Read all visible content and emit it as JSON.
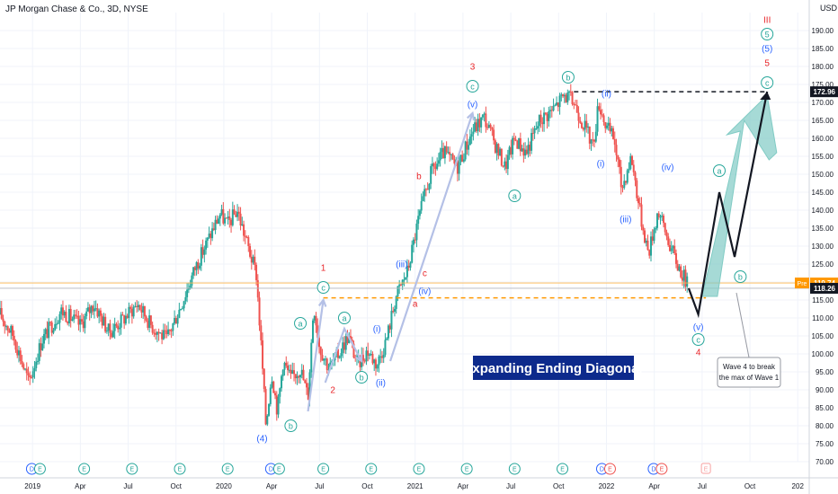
{
  "header": {
    "title": "JP Morgan Chase & Co., 3D, NYSE",
    "currency": "USD"
  },
  "annotation_box": {
    "title": "Expanding Ending Diagonal"
  },
  "callout": {
    "line1": "Wave 4 to break",
    "line2": "the max of Wave 1"
  },
  "price_tags": [
    {
      "label": "172.96",
      "value": 172.96,
      "bg": "#131722"
    },
    {
      "prefix": "Pre",
      "label": "119.74",
      "value": 119.74,
      "bg": "#ff9800"
    },
    {
      "label": "118.26",
      "value": 118.26,
      "bg": "#131722"
    }
  ],
  "colors": {
    "up": "#26a69a",
    "down": "#ef5350",
    "wave_red": "#e8262a",
    "wave_blue": "#2962ff",
    "wave_green": "#26a69a",
    "path": "#131722",
    "projection": "#80cbc4",
    "trend": "#b4c0e6",
    "dash_orange": "#ff9800",
    "box_bg": "#0d2a8c",
    "grid": "#f0f3fa"
  },
  "chart_data": {
    "type": "candlestick",
    "title": "JP Morgan Chase & Co., 3D, NYSE",
    "ylim": [
      70,
      195
    ],
    "y_ticks": [
      70,
      75,
      80,
      85,
      90,
      95,
      100,
      105,
      110,
      115,
      120,
      125,
      130,
      135,
      140,
      145,
      150,
      155,
      160,
      165,
      170,
      175,
      180,
      185,
      190
    ],
    "x_ticks": [
      {
        "label": "2019",
        "t": 2019.0
      },
      {
        "label": "Apr",
        "t": 2019.25
      },
      {
        "label": "Jul",
        "t": 2019.5
      },
      {
        "label": "Oct",
        "t": 2019.75
      },
      {
        "label": "2020",
        "t": 2020.0
      },
      {
        "label": "Apr",
        "t": 2020.25
      },
      {
        "label": "Jul",
        "t": 2020.5
      },
      {
        "label": "Oct",
        "t": 2020.75
      },
      {
        "label": "2021",
        "t": 2021.0
      },
      {
        "label": "Apr",
        "t": 2021.25
      },
      {
        "label": "Jul",
        "t": 2021.5
      },
      {
        "label": "Oct",
        "t": 2021.75
      },
      {
        "label": "2022",
        "t": 2022.0
      },
      {
        "label": "Apr",
        "t": 2022.25
      },
      {
        "label": "Jul",
        "t": 2022.5
      },
      {
        "label": "Oct",
        "t": 2022.75
      },
      {
        "label": "202",
        "t": 2023.0
      }
    ],
    "price_path": [
      [
        2018.83,
        111
      ],
      [
        2018.9,
        105
      ],
      [
        2018.98,
        92
      ],
      [
        2019.05,
        104
      ],
      [
        2019.15,
        112
      ],
      [
        2019.25,
        108
      ],
      [
        2019.32,
        114
      ],
      [
        2019.4,
        106
      ],
      [
        2019.48,
        110
      ],
      [
        2019.55,
        114
      ],
      [
        2019.62,
        108
      ],
      [
        2019.7,
        104
      ],
      [
        2019.78,
        114
      ],
      [
        2019.85,
        124
      ],
      [
        2019.92,
        132
      ],
      [
        2019.98,
        139
      ],
      [
        2020.02,
        136
      ],
      [
        2020.07,
        140
      ],
      [
        2020.12,
        131
      ],
      [
        2020.17,
        122
      ],
      [
        2020.2,
        98
      ],
      [
        2020.22,
        80
      ],
      [
        2020.25,
        95
      ],
      [
        2020.28,
        84
      ],
      [
        2020.31,
        98
      ],
      [
        2020.35,
        93
      ],
      [
        2020.4,
        96
      ],
      [
        2020.44,
        88
      ],
      [
        2020.47,
        114
      ],
      [
        2020.5,
        102
      ],
      [
        2020.55,
        96
      ],
      [
        2020.6,
        100
      ],
      [
        2020.65,
        105
      ],
      [
        2020.7,
        97
      ],
      [
        2020.75,
        101
      ],
      [
        2020.8,
        97
      ],
      [
        2020.85,
        104
      ],
      [
        2020.9,
        116
      ],
      [
        2020.96,
        123
      ],
      [
        2021.02,
        138
      ],
      [
        2021.08,
        150
      ],
      [
        2021.15,
        156
      ],
      [
        2021.22,
        152
      ],
      [
        2021.3,
        162
      ],
      [
        2021.36,
        166
      ],
      [
        2021.42,
        158
      ],
      [
        2021.47,
        152
      ],
      [
        2021.52,
        160
      ],
      [
        2021.58,
        156
      ],
      [
        2021.65,
        165
      ],
      [
        2021.72,
        168
      ],
      [
        2021.78,
        172
      ],
      [
        2021.83,
        170
      ],
      [
        2021.88,
        164
      ],
      [
        2021.93,
        158
      ],
      [
        2021.96,
        170
      ],
      [
        2022.0,
        163
      ],
      [
        2022.04,
        160
      ],
      [
        2022.08,
        146
      ],
      [
        2022.13,
        155
      ],
      [
        2022.18,
        138
      ],
      [
        2022.22,
        128
      ],
      [
        2022.27,
        140
      ],
      [
        2022.32,
        132
      ],
      [
        2022.37,
        125
      ],
      [
        2022.41,
        121
      ],
      [
        2022.43,
        118.26
      ]
    ],
    "wave_path": [
      [
        2022.43,
        118.26
      ],
      [
        2022.48,
        111
      ],
      [
        2022.59,
        145
      ],
      [
        2022.67,
        127
      ],
      [
        2022.84,
        173
      ]
    ],
    "projection": [
      [
        2022.5,
        116
      ],
      [
        2022.7,
        162
      ],
      [
        2022.63,
        161
      ],
      [
        2022.84,
        172
      ],
      [
        2022.89,
        156
      ],
      [
        2022.85,
        154
      ],
      [
        2022.72,
        165
      ],
      [
        2022.58,
        116
      ]
    ],
    "trendlines": [
      [
        [
          2020.44,
          84
        ],
        [
          2020.52,
          115
        ]
      ],
      [
        [
          2020.53,
          92
        ],
        [
          2020.63,
          107
        ],
        [
          2020.72,
          98
        ]
      ],
      [
        [
          2020.87,
          98
        ],
        [
          2021.07,
          130
        ],
        [
          2021.3,
          167
        ]
      ]
    ],
    "hlines": [
      {
        "y": 172.96,
        "t0": 2021.83,
        "t1": 2022.84,
        "style": "dash-black"
      },
      {
        "y": 115.6,
        "t0": 2020.52,
        "t1": 2022.52,
        "style": "dash-orange"
      },
      {
        "y": 119.74,
        "style": "solid-orange"
      },
      {
        "y": 118.26,
        "style": "solid-gray"
      }
    ],
    "wave_labels": [
      {
        "text": "1",
        "t": 2020.52,
        "y": 124,
        "color": "red"
      },
      {
        "text": "c",
        "t": 2020.52,
        "y": 118.5,
        "color": "green",
        "circle": true
      },
      {
        "text": "2",
        "t": 2020.57,
        "y": 90,
        "color": "red"
      },
      {
        "text": "3",
        "t": 2021.3,
        "y": 180,
        "color": "red"
      },
      {
        "text": "c",
        "t": 2021.3,
        "y": 174.5,
        "color": "green",
        "circle": true
      },
      {
        "text": "4",
        "t": 2022.48,
        "y": 100.5,
        "color": "red"
      },
      {
        "text": "III",
        "t": 2022.84,
        "y": 193,
        "color": "red"
      },
      {
        "text": "5",
        "t": 2022.84,
        "y": 189,
        "color": "green",
        "circle": true
      },
      {
        "text": "(5)",
        "t": 2022.84,
        "y": 185,
        "color": "blue"
      },
      {
        "text": "5",
        "t": 2022.84,
        "y": 181,
        "color": "red"
      },
      {
        "text": "c",
        "t": 2022.84,
        "y": 175.5,
        "color": "green",
        "circle": true
      },
      {
        "text": "(4)",
        "t": 2020.2,
        "y": 76.5,
        "color": "blue"
      },
      {
        "text": "b",
        "t": 2020.35,
        "y": 80,
        "color": "green",
        "circle": true
      },
      {
        "text": "a",
        "t": 2020.4,
        "y": 108.5,
        "color": "green",
        "circle": true
      },
      {
        "text": "a",
        "t": 2020.63,
        "y": 110,
        "color": "green",
        "circle": true
      },
      {
        "text": "b",
        "t": 2020.72,
        "y": 93.5,
        "color": "green",
        "circle": true
      },
      {
        "text": "(i)",
        "t": 2020.8,
        "y": 107,
        "color": "blue"
      },
      {
        "text": "(ii)",
        "t": 2020.82,
        "y": 92,
        "color": "blue"
      },
      {
        "text": "(iii)",
        "t": 2020.93,
        "y": 125,
        "color": "blue"
      },
      {
        "text": "(iv)",
        "t": 2021.05,
        "y": 117.5,
        "color": "blue"
      },
      {
        "text": "b",
        "t": 2021.02,
        "y": 149.5,
        "color": "red"
      },
      {
        "text": "c",
        "t": 2021.05,
        "y": 122.5,
        "color": "red"
      },
      {
        "text": "a",
        "t": 2021.0,
        "y": 114,
        "color": "red"
      },
      {
        "text": "(v)",
        "t": 2021.3,
        "y": 169.5,
        "color": "blue"
      },
      {
        "text": "a",
        "t": 2021.52,
        "y": 144,
        "color": "green",
        "circle": true
      },
      {
        "text": "b",
        "t": 2021.8,
        "y": 177,
        "color": "green",
        "circle": true
      },
      {
        "text": "(ii)",
        "t": 2022.0,
        "y": 172.5,
        "color": "blue"
      },
      {
        "text": "(i)",
        "t": 2021.97,
        "y": 153,
        "color": "blue"
      },
      {
        "text": "(iii)",
        "t": 2022.1,
        "y": 137.5,
        "color": "blue"
      },
      {
        "text": "(iv)",
        "t": 2022.32,
        "y": 152,
        "color": "blue"
      },
      {
        "text": "a",
        "t": 2022.59,
        "y": 151,
        "color": "green",
        "circle": true
      },
      {
        "text": "b",
        "t": 2022.7,
        "y": 121.5,
        "color": "green",
        "circle": true
      },
      {
        "text": "(v)",
        "t": 2022.48,
        "y": 107.5,
        "color": "blue"
      },
      {
        "text": "c",
        "t": 2022.48,
        "y": 104,
        "color": "green",
        "circle": true
      }
    ],
    "events": [
      {
        "t": 2019.02,
        "kind": "DE"
      },
      {
        "t": 2019.27,
        "kind": "E"
      },
      {
        "t": 2019.52,
        "kind": "E"
      },
      {
        "t": 2019.77,
        "kind": "E"
      },
      {
        "t": 2020.02,
        "kind": "E"
      },
      {
        "t": 2020.27,
        "kind": "DE"
      },
      {
        "t": 2020.52,
        "kind": "E"
      },
      {
        "t": 2020.77,
        "kind": "E"
      },
      {
        "t": 2021.02,
        "kind": "E"
      },
      {
        "t": 2021.27,
        "kind": "E"
      },
      {
        "t": 2021.52,
        "kind": "E"
      },
      {
        "t": 2021.77,
        "kind": "E"
      },
      {
        "t": 2022.0,
        "kind": "DE"
      },
      {
        "t": 2022.27,
        "kind": "DE"
      },
      {
        "t": 2022.52,
        "kind": "E-future"
      }
    ]
  }
}
